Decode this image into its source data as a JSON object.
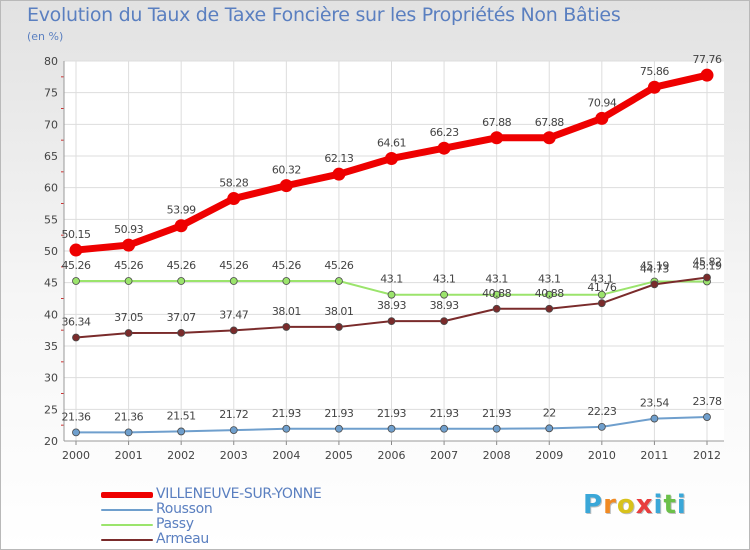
{
  "title": "Evolution du Taux de Taxe Foncière sur les Propriétés Non Bâties",
  "subtitle": "(en %)",
  "chart_data": {
    "type": "line",
    "title": "Evolution du Taux de Taxe Foncière sur les Propriétés Non Bâties",
    "ylabel": "(en %)",
    "xlabel": "",
    "x": [
      "2000",
      "2001",
      "2002",
      "2003",
      "2004",
      "2005",
      "2006",
      "2007",
      "2008",
      "2009",
      "2010",
      "2011",
      "2012"
    ],
    "ylim": [
      20,
      80
    ],
    "yticks": [
      "20",
      "25",
      "30",
      "35",
      "40",
      "45",
      "50",
      "55",
      "60",
      "65",
      "70",
      "75",
      "80"
    ],
    "series": [
      {
        "name": "VILLENEUVE-SUR-YONNE",
        "color": "#ee0000",
        "values": [
          50.15,
          50.93,
          53.99,
          58.28,
          60.32,
          62.13,
          64.61,
          66.23,
          67.88,
          67.88,
          70.94,
          75.86,
          77.76
        ],
        "labels": [
          "50.15",
          "50.93",
          "53.99",
          "58.28",
          "60.32",
          "62.13",
          "64.61",
          "66.23",
          "67.88",
          "67.88",
          "70.94",
          "75.86",
          "77.76"
        ]
      },
      {
        "name": "Rousson",
        "color": "#6f9fcd",
        "values": [
          21.36,
          21.36,
          21.51,
          21.72,
          21.93,
          21.93,
          21.93,
          21.93,
          21.93,
          22,
          22.23,
          23.54,
          23.78
        ],
        "labels": [
          "21.36",
          "21.36",
          "21.51",
          "21.72",
          "21.93",
          "21.93",
          "21.93",
          "21.93",
          "21.93",
          "22",
          "22.23",
          "23.54",
          "23.78"
        ]
      },
      {
        "name": "Passy",
        "color": "#9be46c",
        "values": [
          45.26,
          45.26,
          45.26,
          45.26,
          45.26,
          45.26,
          43.1,
          43.1,
          43.1,
          43.1,
          43.1,
          45.19,
          45.19
        ],
        "labels": [
          "45.26",
          "45.26",
          "45.26",
          "45.26",
          "45.26",
          "45.26",
          "43.1",
          "43.1",
          "43.1",
          "43.1",
          "43.1",
          "45.19",
          "45.19"
        ]
      },
      {
        "name": "Armeau",
        "color": "#7a2b2b",
        "values": [
          36.34,
          37.05,
          37.07,
          37.47,
          38.01,
          38.01,
          38.93,
          38.93,
          40.88,
          40.88,
          41.76,
          44.73,
          45.82
        ],
        "labels": [
          "36.34",
          "37.05",
          "37.07",
          "37.47",
          "38.01",
          "38.01",
          "38.93",
          "38.93",
          "40.88",
          "40.88",
          "41.76",
          "44.73",
          "45.82"
        ]
      }
    ],
    "legend": "bottom-left",
    "grid": true
  },
  "logo": {
    "letters": [
      "P",
      "r",
      "o",
      "x",
      "i",
      "t",
      "i"
    ],
    "colors": [
      "#3aa7d8",
      "#f08a23",
      "#d8c21b",
      "#e83e3e",
      "#3aa7d8",
      "#6cc04a",
      "#3aa7d8"
    ]
  }
}
